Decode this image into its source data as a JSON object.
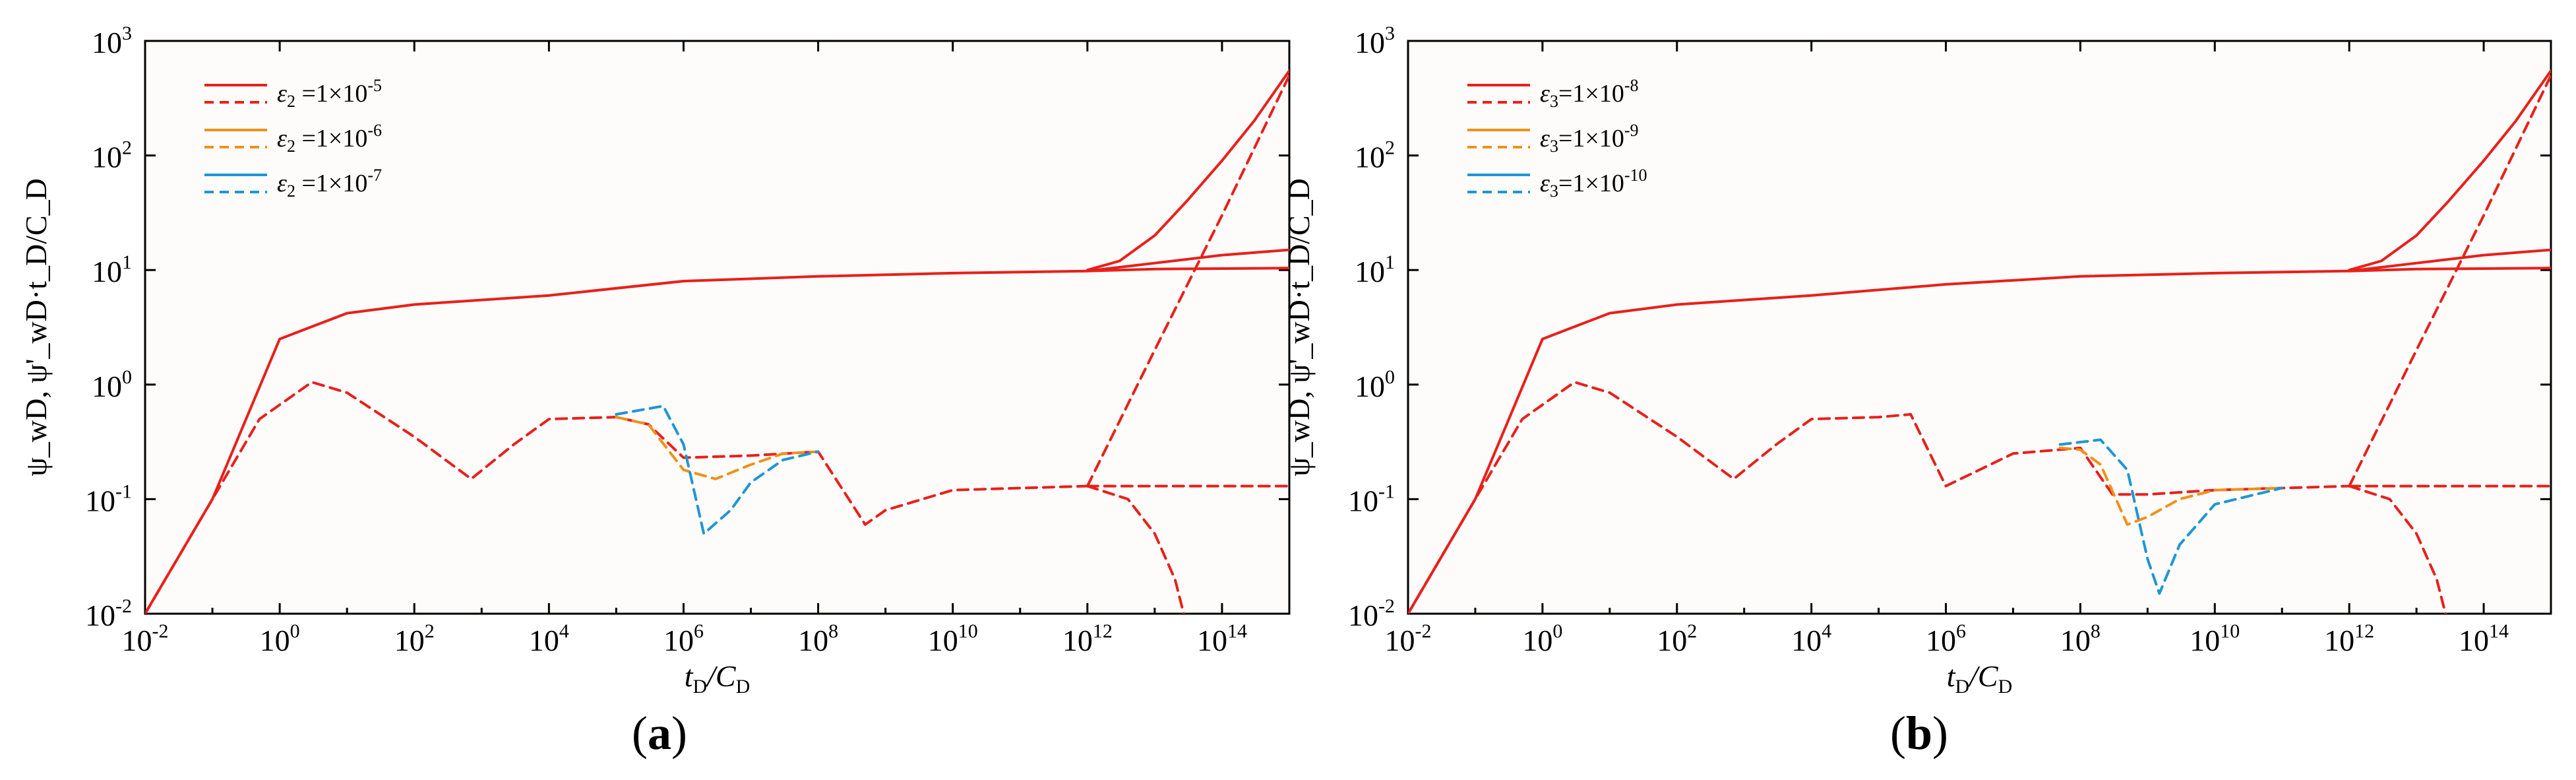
{
  "figure": {
    "panels": [
      {
        "tag": "a",
        "xlabel": {
          "main": "t",
          "sub": "D",
          "mid": "/C",
          "sub2": "D"
        },
        "ylabel": "ψ_wD, ψ'_wD·t_D/C_D",
        "legend": [
          {
            "symbol": "ε",
            "sub": "2",
            "text": " =1×10",
            "exp": "-5",
            "color": "#e8201a"
          },
          {
            "symbol": "ε",
            "sub": "2",
            "text": " =1×10",
            "exp": "-6",
            "color": "#f0901a"
          },
          {
            "symbol": "ε",
            "sub": "2",
            "text": " =1×10",
            "exp": "-7",
            "color": "#1e96d2"
          }
        ]
      },
      {
        "tag": "b",
        "xlabel": {
          "main": "t",
          "sub": "D",
          "mid": "/C",
          "sub2": "D"
        },
        "ylabel": "ψ_wD, ψ'_wD·t_D/C_D",
        "legend": [
          {
            "symbol": "ε",
            "sub": "3",
            "text": "=1×10",
            "exp": "-8",
            "color": "#e8201a"
          },
          {
            "symbol": "ε",
            "sub": "3",
            "text": "=1×10",
            "exp": "-9",
            "color": "#f0901a"
          },
          {
            "symbol": "ε",
            "sub": "3",
            "text": "=1×10",
            "exp": "-10",
            "color": "#1e96d2"
          }
        ]
      }
    ],
    "x_ticks": [
      {
        "base": "10",
        "exp": "-2",
        "v": -2
      },
      {
        "base": "10",
        "exp": "0",
        "v": 0
      },
      {
        "base": "10",
        "exp": "2",
        "v": 2
      },
      {
        "base": "10",
        "exp": "4",
        "v": 4
      },
      {
        "base": "10",
        "exp": "6",
        "v": 6
      },
      {
        "base": "10",
        "exp": "8",
        "v": 8
      },
      {
        "base": "10",
        "exp": "10",
        "v": 10
      },
      {
        "base": "10",
        "exp": "12",
        "v": 12
      },
      {
        "base": "10",
        "exp": "14",
        "v": 14
      }
    ],
    "y_ticks": [
      {
        "base": "10",
        "exp": "-2",
        "v": -2
      },
      {
        "base": "10",
        "exp": "-1",
        "v": -1
      },
      {
        "base": "10",
        "exp": "0",
        "v": 0
      },
      {
        "base": "10",
        "exp": "1",
        "v": 1
      },
      {
        "base": "10",
        "exp": "2",
        "v": 2
      },
      {
        "base": "10",
        "exp": "3",
        "v": 3
      }
    ]
  },
  "chart_data": [
    {
      "type": "line",
      "panel": "a",
      "x_scale": "log",
      "y_scale": "log",
      "xlim": [
        0.01,
        1000000000000000.0
      ],
      "ylim": [
        0.01,
        1000
      ],
      "xlabel": "tD/CD",
      "ylabel": "ψwD, ψ'wD·tD/CD",
      "legend_position": "top-left",
      "series": [
        {
          "name": "ε2 =1×10-5 (pressure)",
          "style": "solid",
          "color": "#e8201a",
          "x": [
            0.01,
            0.1,
            1,
            10,
            100,
            10000.0,
            1000000.0,
            100000000.0,
            10000000000.0,
            1000000000000.0,
            10000000000000.0,
            100000000000000.0,
            1000000000000000.0
          ],
          "y": [
            0.01,
            0.1,
            2.5,
            4.2,
            5.0,
            6.0,
            8.0,
            8.8,
            9.4,
            9.8,
            10.2,
            10.3,
            10.4
          ]
        },
        {
          "name": "ε2 =1×10-5 (pressure, late branch 1)",
          "style": "solid",
          "color": "#e8201a",
          "x": [
            1000000000000.0,
            10000000000000.0,
            100000000000000.0,
            1000000000000000.0
          ],
          "y": [
            9.8,
            11.5,
            13.5,
            15
          ]
        },
        {
          "name": "ε2 =1×10-5 (pressure, late branch 2)",
          "style": "solid",
          "color": "#e8201a",
          "x": [
            1000000000000.0,
            3000000000000.0,
            10000000000000.0,
            30000000000000.0,
            100000000000000.0,
            300000000000000.0,
            1000000000000000.0
          ],
          "y": [
            10,
            12,
            20,
            40,
            90,
            200,
            550
          ]
        },
        {
          "name": "ε2 =1×10-5 (derivative)",
          "style": "dashed",
          "color": "#e8201a",
          "x": [
            0.01,
            0.1,
            0.5,
            3,
            10,
            100,
            700,
            3000,
            10000.0,
            100000.0,
            300000.0,
            1000000.0,
            10000000.0,
            100000000.0,
            500000000.0,
            1000000000.0,
            10000000000.0,
            100000000000.0,
            1000000000000.0
          ],
          "y": [
            0.01,
            0.1,
            0.5,
            1.05,
            0.85,
            0.35,
            0.15,
            0.3,
            0.5,
            0.52,
            0.45,
            0.23,
            0.24,
            0.26,
            0.06,
            0.08,
            0.12,
            0.125,
            0.13
          ]
        },
        {
          "name": "ε2 =1×10-5 (derivative, constant branch)",
          "style": "dashed",
          "color": "#e8201a",
          "x": [
            1000000000000.0,
            1000000000000000.0
          ],
          "y": [
            0.13,
            0.13
          ]
        },
        {
          "name": "ε2 =1×10-5 (derivative, rising branch)",
          "style": "dashed",
          "color": "#e8201a",
          "x": [
            1000000000000.0,
            10000000000000.0,
            100000000000000.0,
            1000000000000000.0
          ],
          "y": [
            0.13,
            2,
            30,
            500
          ]
        },
        {
          "name": "ε2 =1×10-5 (derivative, dropping branch)",
          "style": "dashed",
          "color": "#e8201a",
          "x": [
            1000000000000.0,
            4000000000000.0,
            10000000000000.0,
            20000000000000.0,
            27000000000000.0
          ],
          "y": [
            0.13,
            0.1,
            0.05,
            0.02,
            0.01
          ]
        },
        {
          "name": "ε2 =1×10-6",
          "style": "dashed",
          "color": "#f0901a",
          "x": [
            100000.0,
            300000.0,
            1000000.0,
            3000000.0,
            10000000.0,
            30000000.0,
            100000000.0
          ],
          "y": [
            0.52,
            0.45,
            0.18,
            0.15,
            0.2,
            0.25,
            0.26
          ]
        },
        {
          "name": "ε2 =1×10-7",
          "style": "dashed",
          "color": "#1e96d2",
          "x": [
            100000.0,
            500000.0,
            1000000.0,
            2000000.0,
            5000000.0,
            10000000.0,
            30000000.0,
            100000000.0
          ],
          "y": [
            0.55,
            0.65,
            0.3,
            0.05,
            0.08,
            0.14,
            0.22,
            0.26
          ]
        }
      ]
    },
    {
      "type": "line",
      "panel": "b",
      "x_scale": "log",
      "y_scale": "log",
      "xlim": [
        0.01,
        1000000000000000.0
      ],
      "ylim": [
        0.01,
        1000
      ],
      "xlabel": "tD/CD",
      "ylabel": "ψwD, ψ'wD·tD/CD",
      "legend_position": "top-left",
      "series": [
        {
          "name": "ε3=1×10-8 (pressure)",
          "style": "solid",
          "color": "#e8201a",
          "x": [
            0.01,
            0.1,
            1,
            10,
            100,
            10000.0,
            1000000.0,
            100000000.0,
            10000000000.0,
            1000000000000.0,
            10000000000000.0,
            100000000000000.0,
            1000000000000000.0
          ],
          "y": [
            0.01,
            0.1,
            2.5,
            4.2,
            5.0,
            6.0,
            7.5,
            8.8,
            9.4,
            9.8,
            10.2,
            10.3,
            10.4
          ]
        },
        {
          "name": "ε3=1×10-8 (pressure, late branch 1)",
          "style": "solid",
          "color": "#e8201a",
          "x": [
            1000000000000.0,
            10000000000000.0,
            100000000000000.0,
            1000000000000000.0
          ],
          "y": [
            9.8,
            11.5,
            13.5,
            15
          ]
        },
        {
          "name": "ε3=1×10-8 (pressure, late branch 2)",
          "style": "solid",
          "color": "#e8201a",
          "x": [
            1000000000000.0,
            3000000000000.0,
            10000000000000.0,
            30000000000000.0,
            100000000000000.0,
            300000000000000.0,
            1000000000000000.0
          ],
          "y": [
            10,
            12,
            20,
            40,
            90,
            200,
            550
          ]
        },
        {
          "name": "ε3=1×10-8 (derivative)",
          "style": "dashed",
          "color": "#e8201a",
          "x": [
            0.01,
            0.1,
            0.5,
            3,
            10,
            100,
            700,
            3000,
            10000.0,
            100000.0,
            300000.0,
            1000000.0,
            10000000.0,
            100000000.0,
            300000000.0,
            1000000000.0,
            10000000000.0,
            100000000000.0,
            1000000000000.0
          ],
          "y": [
            0.01,
            0.1,
            0.5,
            1.05,
            0.85,
            0.35,
            0.15,
            0.3,
            0.5,
            0.52,
            0.55,
            0.13,
            0.25,
            0.28,
            0.11,
            0.11,
            0.12,
            0.125,
            0.13
          ]
        },
        {
          "name": "ε3=1×10-8 (derivative, constant branch)",
          "style": "dashed",
          "color": "#e8201a",
          "x": [
            1000000000000.0,
            1000000000000000.0
          ],
          "y": [
            0.13,
            0.13
          ]
        },
        {
          "name": "ε3=1×10-8 (derivative, rising branch)",
          "style": "dashed",
          "color": "#e8201a",
          "x": [
            1000000000000.0,
            10000000000000.0,
            100000000000000.0,
            1000000000000000.0
          ],
          "y": [
            0.13,
            2,
            30,
            500
          ]
        },
        {
          "name": "ε3=1×10-8 (derivative, dropping branch)",
          "style": "dashed",
          "color": "#e8201a",
          "x": [
            1000000000000.0,
            4000000000000.0,
            10000000000000.0,
            20000000000000.0,
            27000000000000.0
          ],
          "y": [
            0.13,
            0.1,
            0.05,
            0.02,
            0.01
          ]
        },
        {
          "name": "ε3=1×10-9",
          "style": "dashed",
          "color": "#f0901a",
          "x": [
            50000000.0,
            100000000.0,
            200000000.0,
            500000000.0,
            1000000000.0,
            3000000000.0,
            10000000000.0,
            100000000000.0
          ],
          "y": [
            0.28,
            0.27,
            0.2,
            0.06,
            0.07,
            0.1,
            0.12,
            0.125
          ]
        },
        {
          "name": "ε3=1×10-10",
          "style": "dashed",
          "color": "#1e96d2",
          "x": [
            50000000.0,
            200000000.0,
            500000000.0,
            1000000000.0,
            1500000000.0,
            3000000000.0,
            10000000000.0,
            100000000000.0
          ],
          "y": [
            0.3,
            0.33,
            0.18,
            0.03,
            0.015,
            0.04,
            0.09,
            0.125
          ]
        }
      ]
    }
  ]
}
